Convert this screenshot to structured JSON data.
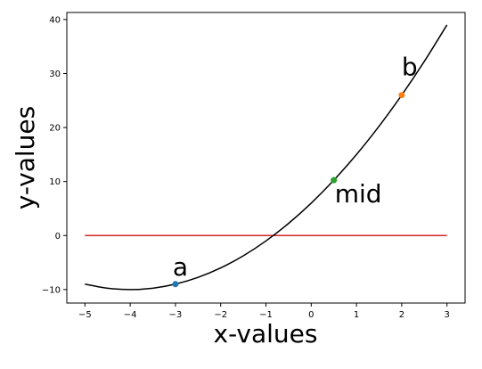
{
  "chart_data": {
    "type": "line",
    "title": "",
    "xlabel": "x-values",
    "ylabel": "y-values",
    "xlim": [
      -5.4,
      3.4
    ],
    "ylim": [
      -12.5,
      41.3
    ],
    "xticks": [
      -5,
      -4,
      -3,
      -2,
      -1,
      0,
      1,
      2,
      3
    ],
    "xtick_labels": [
      "−5",
      "−4",
      "−3",
      "−2",
      "−1",
      "0",
      "1",
      "2",
      "3"
    ],
    "yticks": [
      -10,
      0,
      10,
      20,
      30,
      40
    ],
    "ytick_labels": [
      "−10",
      "0",
      "10",
      "20",
      "30",
      "40"
    ],
    "grid": false,
    "curve": {
      "color": "#000000",
      "x": [
        -5,
        -4.5,
        -4,
        -3.5,
        -3,
        -2.5,
        -2,
        -1.5,
        -1,
        -0.5,
        0,
        0.5,
        1,
        1.5,
        2,
        2.5,
        3
      ],
      "y": [
        -9,
        -9.75,
        -10,
        -9.75,
        -9,
        -7.75,
        -6,
        -3.75,
        -1,
        2.25,
        6,
        10.25,
        15,
        20.25,
        26,
        32.25,
        39
      ]
    },
    "hline": {
      "color": "#d62728",
      "y": 0,
      "x_from": -5,
      "x_to": 3
    },
    "points": [
      {
        "label": "a",
        "x": -3,
        "y": -9,
        "color": "#1f77b4"
      },
      {
        "label": "mid",
        "x": 0.5,
        "y": 10.25,
        "color": "#2ca02c"
      },
      {
        "label": "b",
        "x": 2,
        "y": 26,
        "color": "#ff7f0e"
      }
    ]
  }
}
